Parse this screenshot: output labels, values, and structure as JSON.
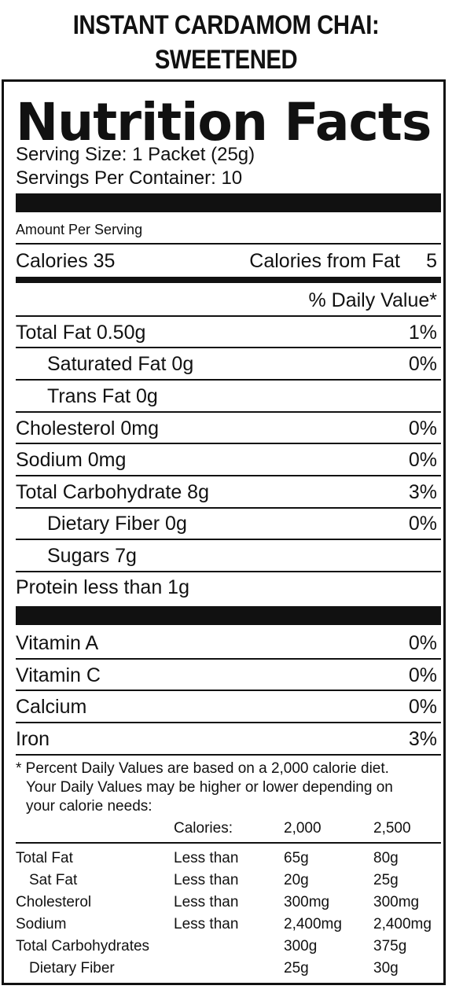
{
  "product": {
    "title_line1": "INSTANT CARDAMOM CHAI:",
    "title_line2": "SWEETENED"
  },
  "label": {
    "heading": "Nutrition Facts",
    "serving_size": "Serving Size: 1 Packet (25g)",
    "servings_per_container": "Servings Per Container: 10",
    "amount_per_serving": "Amount Per Serving",
    "calories": "Calories 35",
    "calories_from_fat": "Calories from Fat",
    "calories_from_fat_value": "5",
    "daily_value_header": "% Daily Value*",
    "nutrients": [
      {
        "name": "Total Fat  0.50g",
        "dv": "1%"
      },
      {
        "name": "Saturated Fat 0g",
        "dv": "0%"
      },
      {
        "name": "Trans Fat 0g",
        "dv": ""
      },
      {
        "name": "Cholesterol  0mg",
        "dv": "0%"
      },
      {
        "name": "Sodium  0mg",
        "dv": "0%"
      },
      {
        "name": "Total Carbohydrate  8g",
        "dv": "3%"
      },
      {
        "name": "Dietary Fiber  0g",
        "dv": "0%"
      },
      {
        "name": "Sugars  7g",
        "dv": ""
      },
      {
        "name": "Protein less than 1g",
        "dv": ""
      }
    ],
    "vitamins": [
      {
        "name": "Vitamin A",
        "dv": "0%"
      },
      {
        "name": "Vitamin C",
        "dv": "0%"
      },
      {
        "name": "Calcium",
        "dv": "0%"
      },
      {
        "name": "Iron",
        "dv": "3%"
      }
    ],
    "footnote": [
      "* Percent Daily Values are based on a 2,000 calorie diet.",
      "Your Daily Values may be higher or lower depending on",
      "your calorie needs:"
    ],
    "table": {
      "header": [
        "Calories:",
        "2,000",
        "2,500"
      ],
      "rows": [
        [
          "Total Fat",
          "Less than",
          "65g",
          "80g"
        ],
        [
          "Sat Fat",
          "Less than",
          "20g",
          "25g"
        ],
        [
          "Cholesterol",
          "Less than",
          "300mg",
          "300mg"
        ],
        [
          "Sodium",
          "Less than",
          "2,400mg",
          "2,400mg"
        ],
        [
          "Total Carbohydrates",
          "",
          "300g",
          "375g"
        ],
        [
          "Dietary Fiber",
          "",
          "25g",
          "30g"
        ]
      ]
    }
  }
}
